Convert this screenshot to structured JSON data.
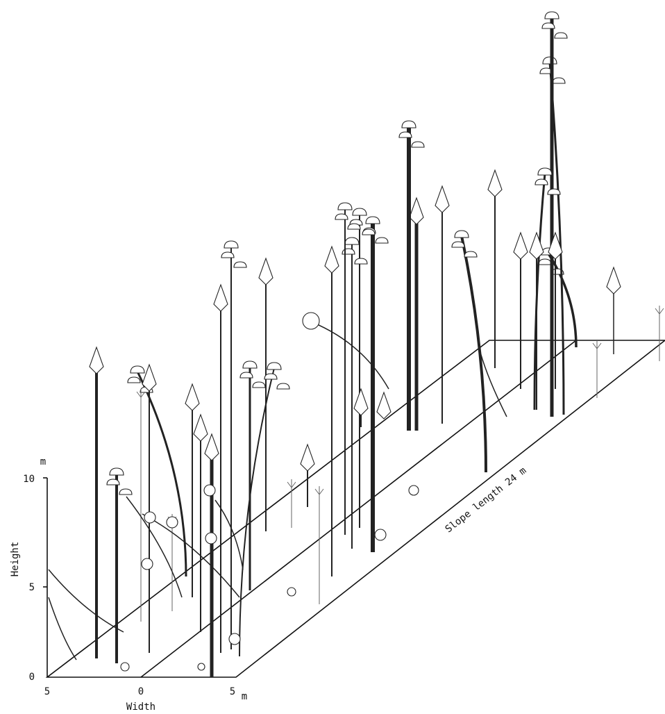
{
  "axes": {
    "height_unit": "m",
    "height_ticks": [
      "10",
      "5",
      "0"
    ],
    "height_label": "Height",
    "width_ticks": [
      "5",
      "0",
      "5"
    ],
    "width_unit": "m",
    "width_label": "Width"
  },
  "slope_label": "Slope length 24 m"
}
